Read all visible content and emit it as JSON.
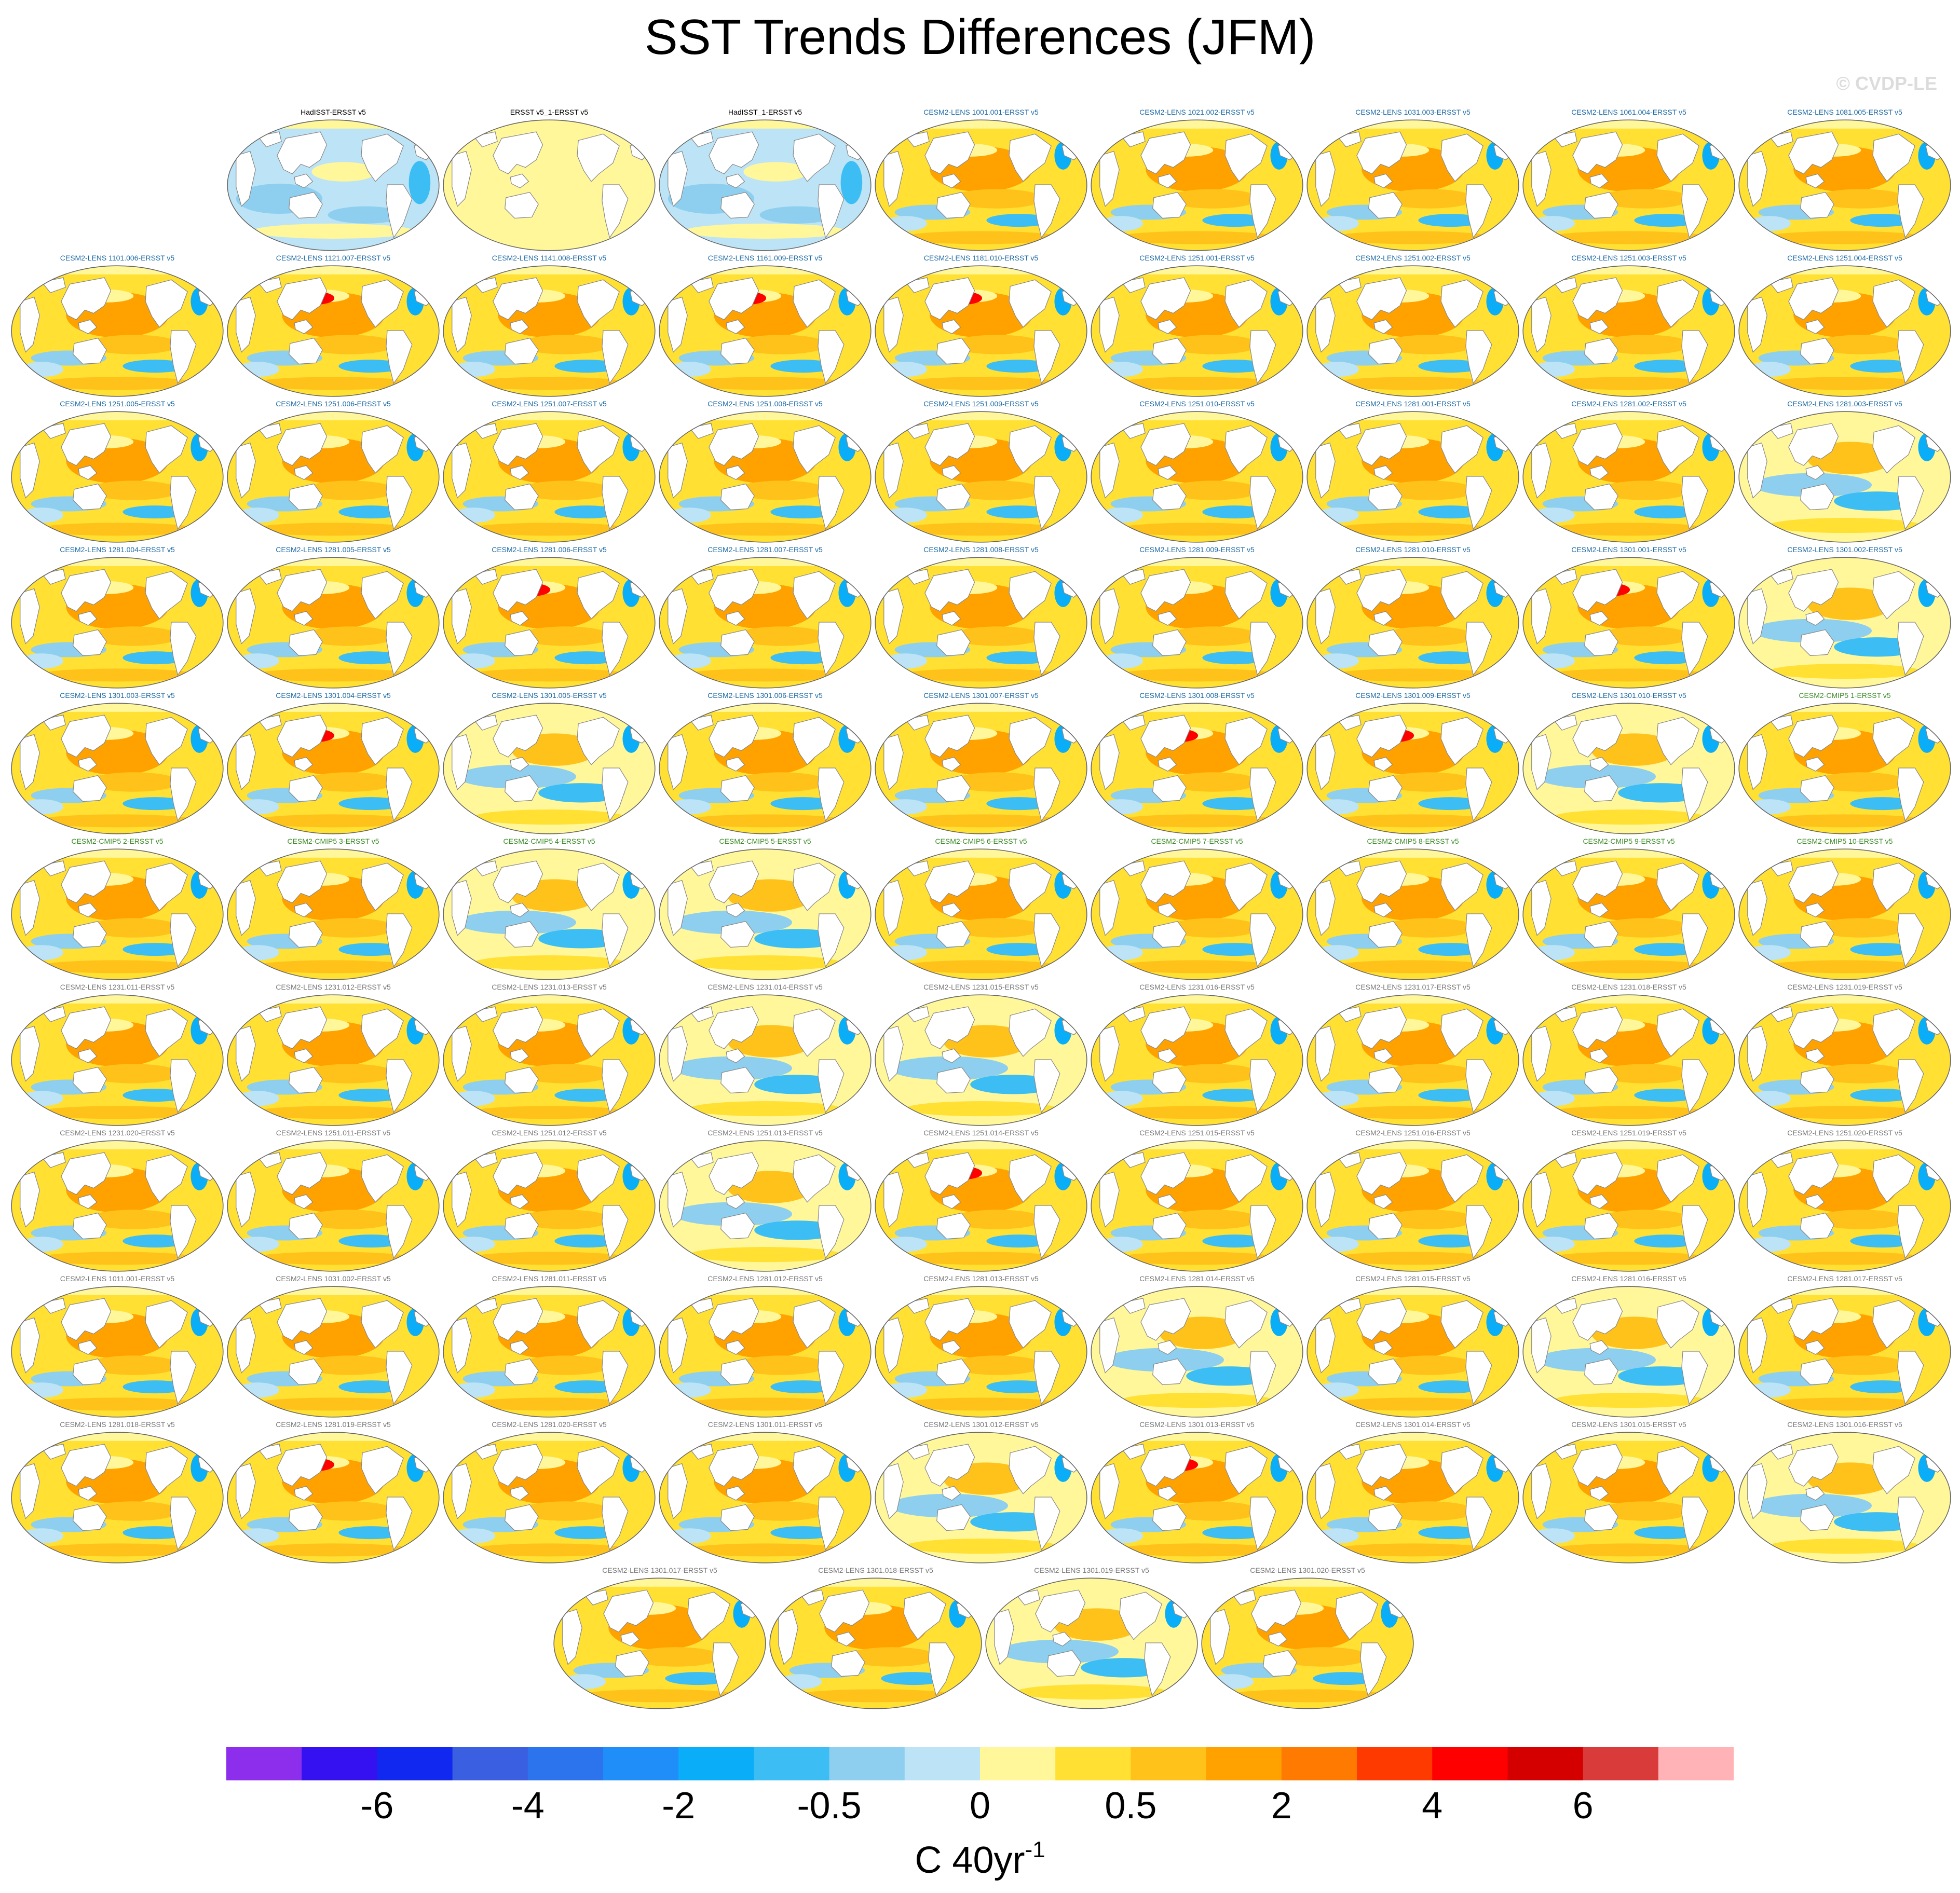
{
  "title": "SST Trends Differences (JFM)",
  "watermark": "© CVDP-LE",
  "colors": {
    "obs_title": "#000000",
    "cesm2_lens_a_title": "#1d6aa5",
    "cesm2_cmip5_title": "#3c8c28",
    "cesm2_lens_b_title": "#777777",
    "land": "#ffffff",
    "coast": "#888888"
  },
  "rows": [
    [
      {
        "title": "HadISST-ERSST v5",
        "group": "obs",
        "pattern": "cool"
      },
      {
        "title": "ERSST v5_1-ERSST v5",
        "group": "obs",
        "pattern": "zero"
      },
      {
        "title": "HadISST_1-ERSST v5",
        "group": "obs",
        "pattern": "cool"
      },
      {
        "title": "CESM2-LENS 1001.001-ERSST v5",
        "group": "cesm2_lens_a",
        "pattern": "warm"
      },
      {
        "title": "CESM2-LENS 1021.002-ERSST v5",
        "group": "cesm2_lens_a",
        "pattern": "warm"
      },
      {
        "title": "CESM2-LENS 1031.003-ERSST v5",
        "group": "cesm2_lens_a",
        "pattern": "warm"
      },
      {
        "title": "CESM2-LENS 1061.004-ERSST v5",
        "group": "cesm2_lens_a",
        "pattern": "warm"
      },
      {
        "title": "CESM2-LENS 1081.005-ERSST v5",
        "group": "cesm2_lens_a",
        "pattern": "warm"
      }
    ],
    [
      {
        "title": "CESM2-LENS 1101.006-ERSST v5",
        "group": "cesm2_lens_a",
        "pattern": "warm"
      },
      {
        "title": "CESM2-LENS 1121.007-ERSST v5",
        "group": "cesm2_lens_a",
        "pattern": "hot"
      },
      {
        "title": "CESM2-LENS 1141.008-ERSST v5",
        "group": "cesm2_lens_a",
        "pattern": "warm"
      },
      {
        "title": "CESM2-LENS 1161.009-ERSST v5",
        "group": "cesm2_lens_a",
        "pattern": "hot"
      },
      {
        "title": "CESM2-LENS 1181.010-ERSST v5",
        "group": "cesm2_lens_a",
        "pattern": "hot"
      },
      {
        "title": "CESM2-LENS 1251.001-ERSST v5",
        "group": "cesm2_lens_a",
        "pattern": "warm"
      },
      {
        "title": "CESM2-LENS 1251.002-ERSST v5",
        "group": "cesm2_lens_a",
        "pattern": "warm"
      },
      {
        "title": "CESM2-LENS 1251.003-ERSST v5",
        "group": "cesm2_lens_a",
        "pattern": "warm"
      },
      {
        "title": "CESM2-LENS 1251.004-ERSST v5",
        "group": "cesm2_lens_a",
        "pattern": "warm"
      }
    ],
    [
      {
        "title": "CESM2-LENS 1251.005-ERSST v5",
        "group": "cesm2_lens_a",
        "pattern": "warm"
      },
      {
        "title": "CESM2-LENS 1251.006-ERSST v5",
        "group": "cesm2_lens_a",
        "pattern": "warm"
      },
      {
        "title": "CESM2-LENS 1251.007-ERSST v5",
        "group": "cesm2_lens_a",
        "pattern": "warm"
      },
      {
        "title": "CESM2-LENS 1251.008-ERSST v5",
        "group": "cesm2_lens_a",
        "pattern": "warm"
      },
      {
        "title": "CESM2-LENS 1251.009-ERSST v5",
        "group": "cesm2_lens_a",
        "pattern": "warm"
      },
      {
        "title": "CESM2-LENS 1251.010-ERSST v5",
        "group": "cesm2_lens_a",
        "pattern": "warm"
      },
      {
        "title": "CESM2-LENS 1281.001-ERSST v5",
        "group": "cesm2_lens_a",
        "pattern": "warm"
      },
      {
        "title": "CESM2-LENS 1281.002-ERSST v5",
        "group": "cesm2_lens_a",
        "pattern": "warm"
      },
      {
        "title": "CESM2-LENS 1281.003-ERSST v5",
        "group": "cesm2_lens_a",
        "pattern": "mixed"
      }
    ],
    [
      {
        "title": "CESM2-LENS 1281.004-ERSST v5",
        "group": "cesm2_lens_a",
        "pattern": "warm"
      },
      {
        "title": "CESM2-LENS 1281.005-ERSST v5",
        "group": "cesm2_lens_a",
        "pattern": "warm"
      },
      {
        "title": "CESM2-LENS 1281.006-ERSST v5",
        "group": "cesm2_lens_a",
        "pattern": "hot"
      },
      {
        "title": "CESM2-LENS 1281.007-ERSST v5",
        "group": "cesm2_lens_a",
        "pattern": "warm"
      },
      {
        "title": "CESM2-LENS 1281.008-ERSST v5",
        "group": "cesm2_lens_a",
        "pattern": "warm"
      },
      {
        "title": "CESM2-LENS 1281.009-ERSST v5",
        "group": "cesm2_lens_a",
        "pattern": "warm"
      },
      {
        "title": "CESM2-LENS 1281.010-ERSST v5",
        "group": "cesm2_lens_a",
        "pattern": "warm"
      },
      {
        "title": "CESM2-LENS 1301.001-ERSST v5",
        "group": "cesm2_lens_a",
        "pattern": "hot"
      },
      {
        "title": "CESM2-LENS 1301.002-ERSST v5",
        "group": "cesm2_lens_a",
        "pattern": "mixed"
      }
    ],
    [
      {
        "title": "CESM2-LENS 1301.003-ERSST v5",
        "group": "cesm2_lens_a",
        "pattern": "warm"
      },
      {
        "title": "CESM2-LENS 1301.004-ERSST v5",
        "group": "cesm2_lens_a",
        "pattern": "hot"
      },
      {
        "title": "CESM2-LENS 1301.005-ERSST v5",
        "group": "cesm2_lens_a",
        "pattern": "mixed"
      },
      {
        "title": "CESM2-LENS 1301.006-ERSST v5",
        "group": "cesm2_lens_a",
        "pattern": "warm"
      },
      {
        "title": "CESM2-LENS 1301.007-ERSST v5",
        "group": "cesm2_lens_a",
        "pattern": "warm"
      },
      {
        "title": "CESM2-LENS 1301.008-ERSST v5",
        "group": "cesm2_lens_a",
        "pattern": "hot"
      },
      {
        "title": "CESM2-LENS 1301.009-ERSST v5",
        "group": "cesm2_lens_a",
        "pattern": "hot"
      },
      {
        "title": "CESM2-LENS 1301.010-ERSST v5",
        "group": "cesm2_lens_a",
        "pattern": "mixed"
      },
      {
        "title": "CESM2-CMIP5 1-ERSST v5",
        "group": "cesm2_cmip5",
        "pattern": "warm"
      }
    ],
    [
      {
        "title": "CESM2-CMIP5 2-ERSST v5",
        "group": "cesm2_cmip5",
        "pattern": "warm"
      },
      {
        "title": "CESM2-CMIP5 3-ERSST v5",
        "group": "cesm2_cmip5",
        "pattern": "warm"
      },
      {
        "title": "CESM2-CMIP5 4-ERSST v5",
        "group": "cesm2_cmip5",
        "pattern": "mixed"
      },
      {
        "title": "CESM2-CMIP5 5-ERSST v5",
        "group": "cesm2_cmip5",
        "pattern": "mixed"
      },
      {
        "title": "CESM2-CMIP5 6-ERSST v5",
        "group": "cesm2_cmip5",
        "pattern": "warm"
      },
      {
        "title": "CESM2-CMIP5 7-ERSST v5",
        "group": "cesm2_cmip5",
        "pattern": "warm"
      },
      {
        "title": "CESM2-CMIP5 8-ERSST v5",
        "group": "cesm2_cmip5",
        "pattern": "warm"
      },
      {
        "title": "CESM2-CMIP5 9-ERSST v5",
        "group": "cesm2_cmip5",
        "pattern": "warm"
      },
      {
        "title": "CESM2-CMIP5 10-ERSST v5",
        "group": "cesm2_cmip5",
        "pattern": "warm"
      }
    ],
    [
      {
        "title": "CESM2-LENS 1231.011-ERSST v5",
        "group": "cesm2_lens_b",
        "pattern": "warm"
      },
      {
        "title": "CESM2-LENS 1231.012-ERSST v5",
        "group": "cesm2_lens_b",
        "pattern": "warm"
      },
      {
        "title": "CESM2-LENS 1231.013-ERSST v5",
        "group": "cesm2_lens_b",
        "pattern": "warm"
      },
      {
        "title": "CESM2-LENS 1231.014-ERSST v5",
        "group": "cesm2_lens_b",
        "pattern": "mixed"
      },
      {
        "title": "CESM2-LENS 1231.015-ERSST v5",
        "group": "cesm2_lens_b",
        "pattern": "mixed"
      },
      {
        "title": "CESM2-LENS 1231.016-ERSST v5",
        "group": "cesm2_lens_b",
        "pattern": "warm"
      },
      {
        "title": "CESM2-LENS 1231.017-ERSST v5",
        "group": "cesm2_lens_b",
        "pattern": "warm"
      },
      {
        "title": "CESM2-LENS 1231.018-ERSST v5",
        "group": "cesm2_lens_b",
        "pattern": "warm"
      },
      {
        "title": "CESM2-LENS 1231.019-ERSST v5",
        "group": "cesm2_lens_b",
        "pattern": "warm"
      }
    ],
    [
      {
        "title": "CESM2-LENS 1231.020-ERSST v5",
        "group": "cesm2_lens_b",
        "pattern": "warm"
      },
      {
        "title": "CESM2-LENS 1251.011-ERSST v5",
        "group": "cesm2_lens_b",
        "pattern": "warm"
      },
      {
        "title": "CESM2-LENS 1251.012-ERSST v5",
        "group": "cesm2_lens_b",
        "pattern": "warm"
      },
      {
        "title": "CESM2-LENS 1251.013-ERSST v5",
        "group": "cesm2_lens_b",
        "pattern": "mixed"
      },
      {
        "title": "CESM2-LENS 1251.014-ERSST v5",
        "group": "cesm2_lens_b",
        "pattern": "hot"
      },
      {
        "title": "CESM2-LENS 1251.015-ERSST v5",
        "group": "cesm2_lens_b",
        "pattern": "warm"
      },
      {
        "title": "CESM2-LENS 1251.016-ERSST v5",
        "group": "cesm2_lens_b",
        "pattern": "warm"
      },
      {
        "title": "CESM2-LENS 1251.019-ERSST v5",
        "group": "cesm2_lens_b",
        "pattern": "warm"
      },
      {
        "title": "CESM2-LENS 1251.020-ERSST v5",
        "group": "cesm2_lens_b",
        "pattern": "warm"
      }
    ],
    [
      {
        "title": "CESM2-LENS 1011.001-ERSST v5",
        "group": "cesm2_lens_b",
        "pattern": "warm"
      },
      {
        "title": "CESM2-LENS 1031.002-ERSST v5",
        "group": "cesm2_lens_b",
        "pattern": "warm"
      },
      {
        "title": "CESM2-LENS 1281.011-ERSST v5",
        "group": "cesm2_lens_b",
        "pattern": "warm"
      },
      {
        "title": "CESM2-LENS 1281.012-ERSST v5",
        "group": "cesm2_lens_b",
        "pattern": "warm"
      },
      {
        "title": "CESM2-LENS 1281.013-ERSST v5",
        "group": "cesm2_lens_b",
        "pattern": "warm"
      },
      {
        "title": "CESM2-LENS 1281.014-ERSST v5",
        "group": "cesm2_lens_b",
        "pattern": "mixed"
      },
      {
        "title": "CESM2-LENS 1281.015-ERSST v5",
        "group": "cesm2_lens_b",
        "pattern": "warm"
      },
      {
        "title": "CESM2-LENS 1281.016-ERSST v5",
        "group": "cesm2_lens_b",
        "pattern": "mixed"
      },
      {
        "title": "CESM2-LENS 1281.017-ERSST v5",
        "group": "cesm2_lens_b",
        "pattern": "warm"
      }
    ],
    [
      {
        "title": "CESM2-LENS 1281.018-ERSST v5",
        "group": "cesm2_lens_b",
        "pattern": "warm"
      },
      {
        "title": "CESM2-LENS 1281.019-ERSST v5",
        "group": "cesm2_lens_b",
        "pattern": "hot"
      },
      {
        "title": "CESM2-LENS 1281.020-ERSST v5",
        "group": "cesm2_lens_b",
        "pattern": "warm"
      },
      {
        "title": "CESM2-LENS 1301.011-ERSST v5",
        "group": "cesm2_lens_b",
        "pattern": "warm"
      },
      {
        "title": "CESM2-LENS 1301.012-ERSST v5",
        "group": "cesm2_lens_b",
        "pattern": "mixed"
      },
      {
        "title": "CESM2-LENS 1301.013-ERSST v5",
        "group": "cesm2_lens_b",
        "pattern": "hot"
      },
      {
        "title": "CESM2-LENS 1301.014-ERSST v5",
        "group": "cesm2_lens_b",
        "pattern": "warm"
      },
      {
        "title": "CESM2-LENS 1301.015-ERSST v5",
        "group": "cesm2_lens_b",
        "pattern": "warm"
      },
      {
        "title": "CESM2-LENS 1301.016-ERSST v5",
        "group": "cesm2_lens_b",
        "pattern": "mixed"
      }
    ],
    [
      {
        "title": "CESM2-LENS 1301.017-ERSST v5",
        "group": "cesm2_lens_b",
        "pattern": "warm"
      },
      {
        "title": "CESM2-LENS 1301.018-ERSST v5",
        "group": "cesm2_lens_b",
        "pattern": "warm"
      },
      {
        "title": "CESM2-LENS 1301.019-ERSST v5",
        "group": "cesm2_lens_b",
        "pattern": "mixed"
      },
      {
        "title": "CESM2-LENS 1301.020-ERSST v5",
        "group": "cesm2_lens_b",
        "pattern": "warm"
      }
    ]
  ],
  "colorbar": {
    "colors": [
      "#8c2eec",
      "#3510f0",
      "#1028f0",
      "#3a5fe0",
      "#2c74ee",
      "#1f8ef8",
      "#0aaef8",
      "#3cbdf4",
      "#8ecff0",
      "#bde4f6",
      "#fff79a",
      "#ffe033",
      "#ffc21a",
      "#ffa200",
      "#ff7a00",
      "#ff3a00",
      "#ff0000",
      "#d40000",
      "#d93a3a",
      "#ffb3b6"
    ],
    "labels": [
      "-6",
      "-4",
      "-2",
      "-0.5",
      "0",
      "0.5",
      "2",
      "4",
      "6"
    ],
    "label_boundaries": [
      2,
      4,
      6,
      8,
      10,
      12,
      14,
      16,
      18
    ],
    "units_main": "C 40yr",
    "units_exp": "-1"
  }
}
